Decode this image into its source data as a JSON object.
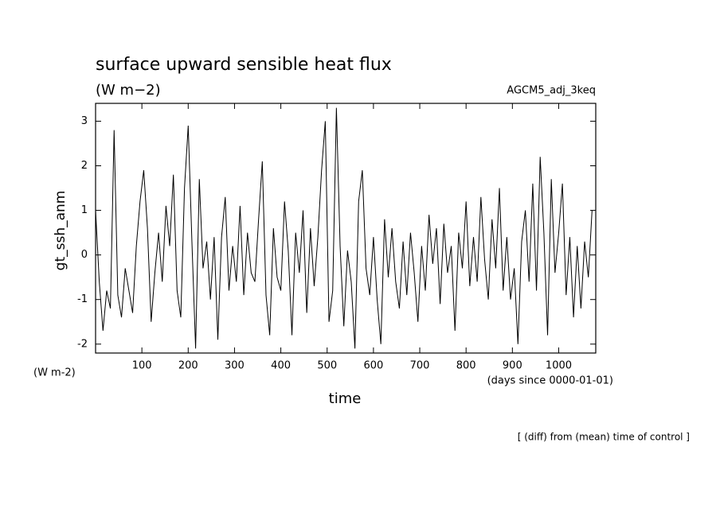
{
  "chart_data": {
    "type": "line",
    "title": "surface upward sensible heat flux",
    "subtitle": "(W m−2)",
    "annotation": "AGCM5_adj_3keq",
    "y_label": "gt_ssh_anm",
    "y_units": "(W m-2)",
    "x_label": "time",
    "x_units": "(days since 0000-01-01)",
    "footnote": "[ (diff) from (mean) time of control ]",
    "color": "#000000",
    "xlim": [
      0,
      1080
    ],
    "xticks": [
      100,
      200,
      300,
      400,
      500,
      600,
      700,
      800,
      900,
      1000
    ],
    "ylim": [
      -2.2,
      3.4
    ],
    "yticks": [
      -2,
      -1,
      0,
      1,
      2,
      3
    ],
    "x": [
      0,
      8,
      16,
      24,
      32,
      40,
      48,
      56,
      64,
      72,
      80,
      88,
      96,
      104,
      112,
      120,
      128,
      136,
      144,
      152,
      160,
      168,
      176,
      184,
      192,
      200,
      208,
      216,
      224,
      232,
      240,
      248,
      256,
      264,
      272,
      280,
      288,
      296,
      304,
      312,
      320,
      328,
      336,
      344,
      352,
      360,
      368,
      376,
      384,
      392,
      400,
      408,
      416,
      424,
      432,
      440,
      448,
      456,
      464,
      472,
      480,
      488,
      496,
      504,
      512,
      520,
      528,
      536,
      544,
      552,
      560,
      568,
      576,
      584,
      592,
      600,
      608,
      616,
      624,
      632,
      640,
      648,
      656,
      664,
      672,
      680,
      688,
      696,
      704,
      712,
      720,
      728,
      736,
      744,
      752,
      760,
      768,
      776,
      784,
      792,
      800,
      808,
      816,
      824,
      832,
      840,
      848,
      856,
      864,
      872,
      880,
      888,
      896,
      904,
      912,
      920,
      928,
      936,
      944,
      952,
      960,
      968,
      976,
      984,
      992,
      1000,
      1008,
      1016,
      1024,
      1032,
      1040,
      1048,
      1056,
      1064,
      1072
    ],
    "values": [
      1.0,
      -0.6,
      -1.7,
      -0.8,
      -1.2,
      2.8,
      -0.9,
      -1.4,
      -0.3,
      -0.8,
      -1.3,
      0.2,
      1.2,
      1.9,
      0.6,
      -1.5,
      -0.4,
      0.5,
      -0.6,
      1.1,
      0.2,
      1.8,
      -0.8,
      -1.4,
      1.5,
      2.9,
      0.3,
      -2.1,
      1.7,
      -0.3,
      0.3,
      -1.0,
      0.4,
      -1.9,
      0.4,
      1.3,
      -0.8,
      0.2,
      -0.6,
      1.1,
      -0.9,
      0.5,
      -0.4,
      -0.6,
      0.8,
      2.1,
      -0.9,
      -1.8,
      0.6,
      -0.5,
      -0.8,
      1.2,
      0.1,
      -1.8,
      0.5,
      -0.4,
      1.0,
      -1.3,
      0.6,
      -0.7,
      0.4,
      1.9,
      3.0,
      -1.5,
      -0.8,
      3.3,
      0.2,
      -1.6,
      0.1,
      -0.6,
      -2.1,
      1.2,
      1.9,
      -0.3,
      -0.9,
      0.4,
      -1.0,
      -2.0,
      0.8,
      -0.5,
      0.6,
      -0.6,
      -1.2,
      0.3,
      -0.9,
      0.5,
      -0.4,
      -1.5,
      0.2,
      -0.8,
      0.9,
      -0.2,
      0.6,
      -1.1,
      0.7,
      -0.4,
      0.2,
      -1.7,
      0.5,
      -0.3,
      1.2,
      -0.7,
      0.4,
      -0.6,
      1.3,
      -0.1,
      -1.0,
      0.8,
      -0.3,
      1.5,
      -0.8,
      0.4,
      -1.0,
      -0.3,
      -2.0,
      0.3,
      1.0,
      -0.6,
      1.6,
      -0.8,
      2.2,
      0.5,
      -1.8,
      1.7,
      -0.4,
      0.5,
      1.6,
      -0.9,
      0.4,
      -1.4,
      0.2,
      -1.2,
      0.3,
      -0.5,
      1.0
    ]
  }
}
